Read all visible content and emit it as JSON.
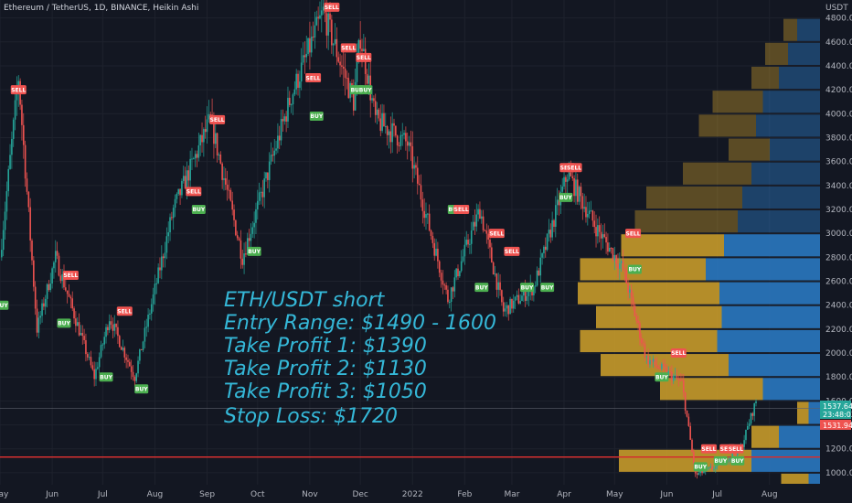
{
  "header": {
    "title": "Ethereum / TetherUS, 1D, BINANCE, Heikin Ashi"
  },
  "price_axis": {
    "unit": "USDT"
  },
  "annotation": {
    "lines": [
      "ETH/USDT short",
      "Entry Range: $1490 - 1600",
      "Take Profit 1: $1390",
      "Take Profit 2: $1130",
      "Take Profit 3: $1050",
      "Stop Loss: $1720"
    ]
  },
  "price_tags": {
    "current_price": "1537.64",
    "countdown": "23:48:03",
    "second_price": "1531.94"
  },
  "colors": {
    "background": "#131722",
    "grid": "#1e222d",
    "up": "#26a69a",
    "down": "#ef5350",
    "annotation": "#35b8d8",
    "stop_line": "#d32f2f",
    "volume_gold": "#c79a2a",
    "volume_blue": "#2a78c0",
    "buy_label": "#4caf50",
    "sell_label": "#ef5350"
  },
  "chart_data": {
    "type": "candlestick",
    "title": "Ethereum / TetherUS, 1D, BINANCE, Heikin Ashi",
    "xlabel": "",
    "ylabel": "USDT",
    "ylim": [
      900,
      4950
    ],
    "y_ticks": [
      1000,
      1200,
      1400,
      1600,
      1800,
      2000,
      2200,
      2400,
      2600,
      2800,
      3000,
      3200,
      3400,
      3600,
      3800,
      4000,
      4200,
      4400,
      4600,
      4800
    ],
    "x_ticks": [
      "May",
      "Jun",
      "Jul",
      "Aug",
      "Sep",
      "Oct",
      "Nov",
      "Dec",
      "2022",
      "Feb",
      "Mar",
      "Apr",
      "May",
      "Jun",
      "Jul",
      "Aug"
    ],
    "x_range": [
      "2021-05-01",
      "2022-08-31"
    ],
    "price_path": [
      {
        "date": "2021-05-01",
        "price": 2800
      },
      {
        "date": "2021-05-12",
        "price": 4300
      },
      {
        "date": "2021-05-23",
        "price": 2200
      },
      {
        "date": "2021-06-03",
        "price": 2800
      },
      {
        "date": "2021-06-26",
        "price": 1800
      },
      {
        "date": "2021-07-05",
        "price": 2300
      },
      {
        "date": "2021-07-20",
        "price": 1800
      },
      {
        "date": "2021-08-12",
        "price": 3200
      },
      {
        "date": "2021-09-03",
        "price": 3950
      },
      {
        "date": "2021-09-22",
        "price": 2800
      },
      {
        "date": "2021-10-21",
        "price": 4150
      },
      {
        "date": "2021-11-09",
        "price": 4850
      },
      {
        "date": "2021-11-27",
        "price": 4100
      },
      {
        "date": "2021-12-01",
        "price": 4650
      },
      {
        "date": "2021-12-10",
        "price": 3950
      },
      {
        "date": "2021-12-29",
        "price": 3750
      },
      {
        "date": "2022-01-22",
        "price": 2450
      },
      {
        "date": "2022-02-10",
        "price": 3200
      },
      {
        "date": "2022-02-24",
        "price": 2350
      },
      {
        "date": "2022-03-14",
        "price": 2550
      },
      {
        "date": "2022-04-03",
        "price": 3500
      },
      {
        "date": "2022-04-20",
        "price": 3050
      },
      {
        "date": "2022-05-06",
        "price": 2700
      },
      {
        "date": "2022-05-20",
        "price": 1950
      },
      {
        "date": "2022-06-10",
        "price": 1750
      },
      {
        "date": "2022-06-18",
        "price": 980
      },
      {
        "date": "2022-06-30",
        "price": 1050
      },
      {
        "date": "2022-07-15",
        "price": 1200
      },
      {
        "date": "2022-07-24",
        "price": 1600
      }
    ],
    "signals": [
      {
        "label": "SELL",
        "date": "2021-05-12",
        "price": 4200
      },
      {
        "label": "BUY",
        "date": "2021-05-02",
        "price": 2400
      },
      {
        "label": "SELL",
        "date": "2021-06-12",
        "price": 2650
      },
      {
        "label": "BUY",
        "date": "2021-06-08",
        "price": 2250
      },
      {
        "label": "SELL",
        "date": "2021-07-14",
        "price": 2350
      },
      {
        "label": "BUY",
        "date": "2021-07-03",
        "price": 1800
      },
      {
        "label": "BUY",
        "date": "2021-07-24",
        "price": 1700
      },
      {
        "label": "SELL",
        "date": "2021-09-07",
        "price": 3950
      },
      {
        "label": "SELL",
        "date": "2021-08-24",
        "price": 3350
      },
      {
        "label": "BUY",
        "date": "2021-08-27",
        "price": 3200
      },
      {
        "label": "BUY",
        "date": "2021-09-29",
        "price": 2850
      },
      {
        "label": "SELL",
        "date": "2021-11-03",
        "price": 4300
      },
      {
        "label": "BUY",
        "date": "2021-11-05",
        "price": 3980
      },
      {
        "label": "SELL",
        "date": "2021-11-14",
        "price": 4890
      },
      {
        "label": "SELL",
        "date": "2021-11-24",
        "price": 4550
      },
      {
        "label": "SELL",
        "date": "2021-12-03",
        "price": 4470
      },
      {
        "label": "BUY",
        "date": "2021-11-29",
        "price": 4200
      },
      {
        "label": "BUY",
        "date": "2021-12-04",
        "price": 4200
      },
      {
        "label": "BUY",
        "date": "2022-01-26",
        "price": 3200
      },
      {
        "label": "SELL",
        "date": "2022-01-30",
        "price": 3200
      },
      {
        "label": "SELL",
        "date": "2022-02-20",
        "price": 3000
      },
      {
        "label": "BUY",
        "date": "2022-02-11",
        "price": 2550
      },
      {
        "label": "SELL",
        "date": "2022-03-01",
        "price": 2850
      },
      {
        "label": "BUY",
        "date": "2022-03-10",
        "price": 2550
      },
      {
        "label": "BUY",
        "date": "2022-03-22",
        "price": 2550
      },
      {
        "label": "SELL",
        "date": "2022-04-03",
        "price": 3550
      },
      {
        "label": "SELL",
        "date": "2022-04-07",
        "price": 3550
      },
      {
        "label": "BUY",
        "date": "2022-04-02",
        "price": 3300
      },
      {
        "label": "SELL",
        "date": "2022-05-12",
        "price": 3000
      },
      {
        "label": "BUY",
        "date": "2022-05-13",
        "price": 2700
      },
      {
        "label": "SELL",
        "date": "2022-06-08",
        "price": 2000
      },
      {
        "label": "BUY",
        "date": "2022-05-29",
        "price": 1800
      },
      {
        "label": "BUY",
        "date": "2022-06-21",
        "price": 1050
      },
      {
        "label": "SELL",
        "date": "2022-06-26",
        "price": 1200
      },
      {
        "label": "SELL",
        "date": "2022-07-07",
        "price": 1200
      },
      {
        "label": "SELL",
        "date": "2022-07-12",
        "price": 1200
      },
      {
        "label": "BUY",
        "date": "2022-07-03",
        "price": 1100
      },
      {
        "label": "BUY",
        "date": "2022-07-13",
        "price": 1100
      }
    ],
    "horizontal_lines": [
      {
        "price": 1131,
        "color": "#d32f2f"
      },
      {
        "price": 1537.64,
        "color": "#5d606b"
      }
    ],
    "volume_profile": [
      {
        "low": 4600,
        "high": 4800,
        "gold": 0.06,
        "blue": 0.1
      },
      {
        "low": 4400,
        "high": 4600,
        "gold": 0.1,
        "blue": 0.14
      },
      {
        "low": 4200,
        "high": 4400,
        "gold": 0.12,
        "blue": 0.18
      },
      {
        "low": 4000,
        "high": 4200,
        "gold": 0.22,
        "blue": 0.25
      },
      {
        "low": 3800,
        "high": 4000,
        "gold": 0.25,
        "blue": 0.28
      },
      {
        "low": 3600,
        "high": 3800,
        "gold": 0.18,
        "blue": 0.22
      },
      {
        "low": 3400,
        "high": 3600,
        "gold": 0.3,
        "blue": 0.3
      },
      {
        "low": 3200,
        "high": 3400,
        "gold": 0.42,
        "blue": 0.34
      },
      {
        "low": 3000,
        "high": 3200,
        "gold": 0.45,
        "blue": 0.36
      },
      {
        "low": 2800,
        "high": 3000,
        "gold": 0.45,
        "blue": 0.42
      },
      {
        "low": 2600,
        "high": 2800,
        "gold": 0.55,
        "blue": 0.5
      },
      {
        "low": 2400,
        "high": 2600,
        "gold": 0.62,
        "blue": 0.44
      },
      {
        "low": 2200,
        "high": 2400,
        "gold": 0.55,
        "blue": 0.43
      },
      {
        "low": 2000,
        "high": 2200,
        "gold": 0.6,
        "blue": 0.45
      },
      {
        "low": 1800,
        "high": 2000,
        "gold": 0.56,
        "blue": 0.4
      },
      {
        "low": 1600,
        "high": 1800,
        "gold": 0.45,
        "blue": 0.25
      },
      {
        "low": 1400,
        "high": 1600,
        "gold": 0.05,
        "blue": 0.05
      },
      {
        "low": 1200,
        "high": 1400,
        "gold": 0.12,
        "blue": 0.18
      },
      {
        "low": 1000,
        "high": 1200,
        "gold": 0.58,
        "blue": 0.3
      },
      {
        "low": 900,
        "high": 1000,
        "gold": 0.12,
        "blue": 0.05
      }
    ]
  }
}
